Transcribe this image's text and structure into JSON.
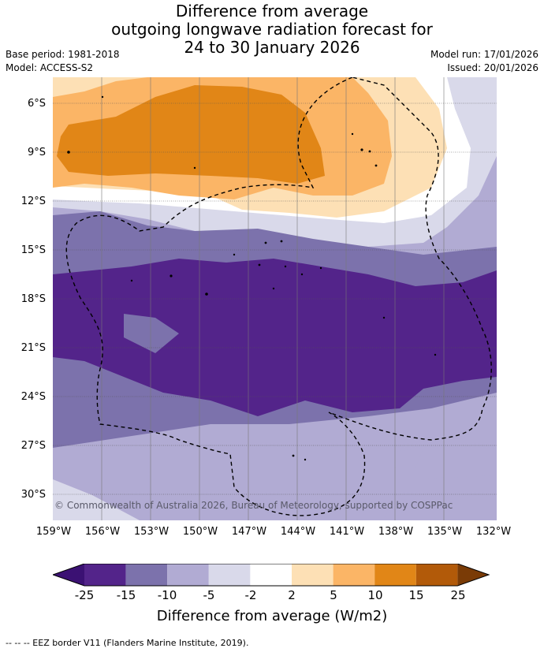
{
  "title": {
    "line1": "Difference from average",
    "line2": "outgoing longwave radiation forecast for",
    "line3": "24 to 30 January 2026"
  },
  "meta": {
    "base_period": "Base period: 1981-2018",
    "model": "Model: ACCESS-S2",
    "model_run": "Model run: 17/01/2026",
    "issued": "Issued: 20/01/2026"
  },
  "axes": {
    "lat_labels": [
      "6°S",
      "9°S",
      "12°S",
      "15°S",
      "18°S",
      "21°S",
      "24°S",
      "27°S",
      "30°S"
    ],
    "lon_labels": [
      "159°W",
      "156°W",
      "153°W",
      "150°W",
      "147°W",
      "144°W",
      "141°W",
      "138°W",
      "135°W",
      "132°W"
    ]
  },
  "credit": "© Commonwealth of Australia 2026, Bureau of Meteorology, supported by COSPPac",
  "colorbar": {
    "title": "Difference from average (W/m2)",
    "ticks": [
      "-25",
      "-15",
      "-10",
      "-5",
      "-2",
      "2",
      "5",
      "10",
      "15",
      "25"
    ],
    "colors": [
      "#3b1173",
      "#53248a",
      "#7c72ac",
      "#b1abd3",
      "#d9d9ea",
      "#ffffff",
      "#fde0b5",
      "#fbb566",
      "#e18617",
      "#b25a09",
      "#7a3b06"
    ]
  },
  "footnote": "--  --  -- EEZ border V11 (Flanders Marine Institute, 2019)."
}
